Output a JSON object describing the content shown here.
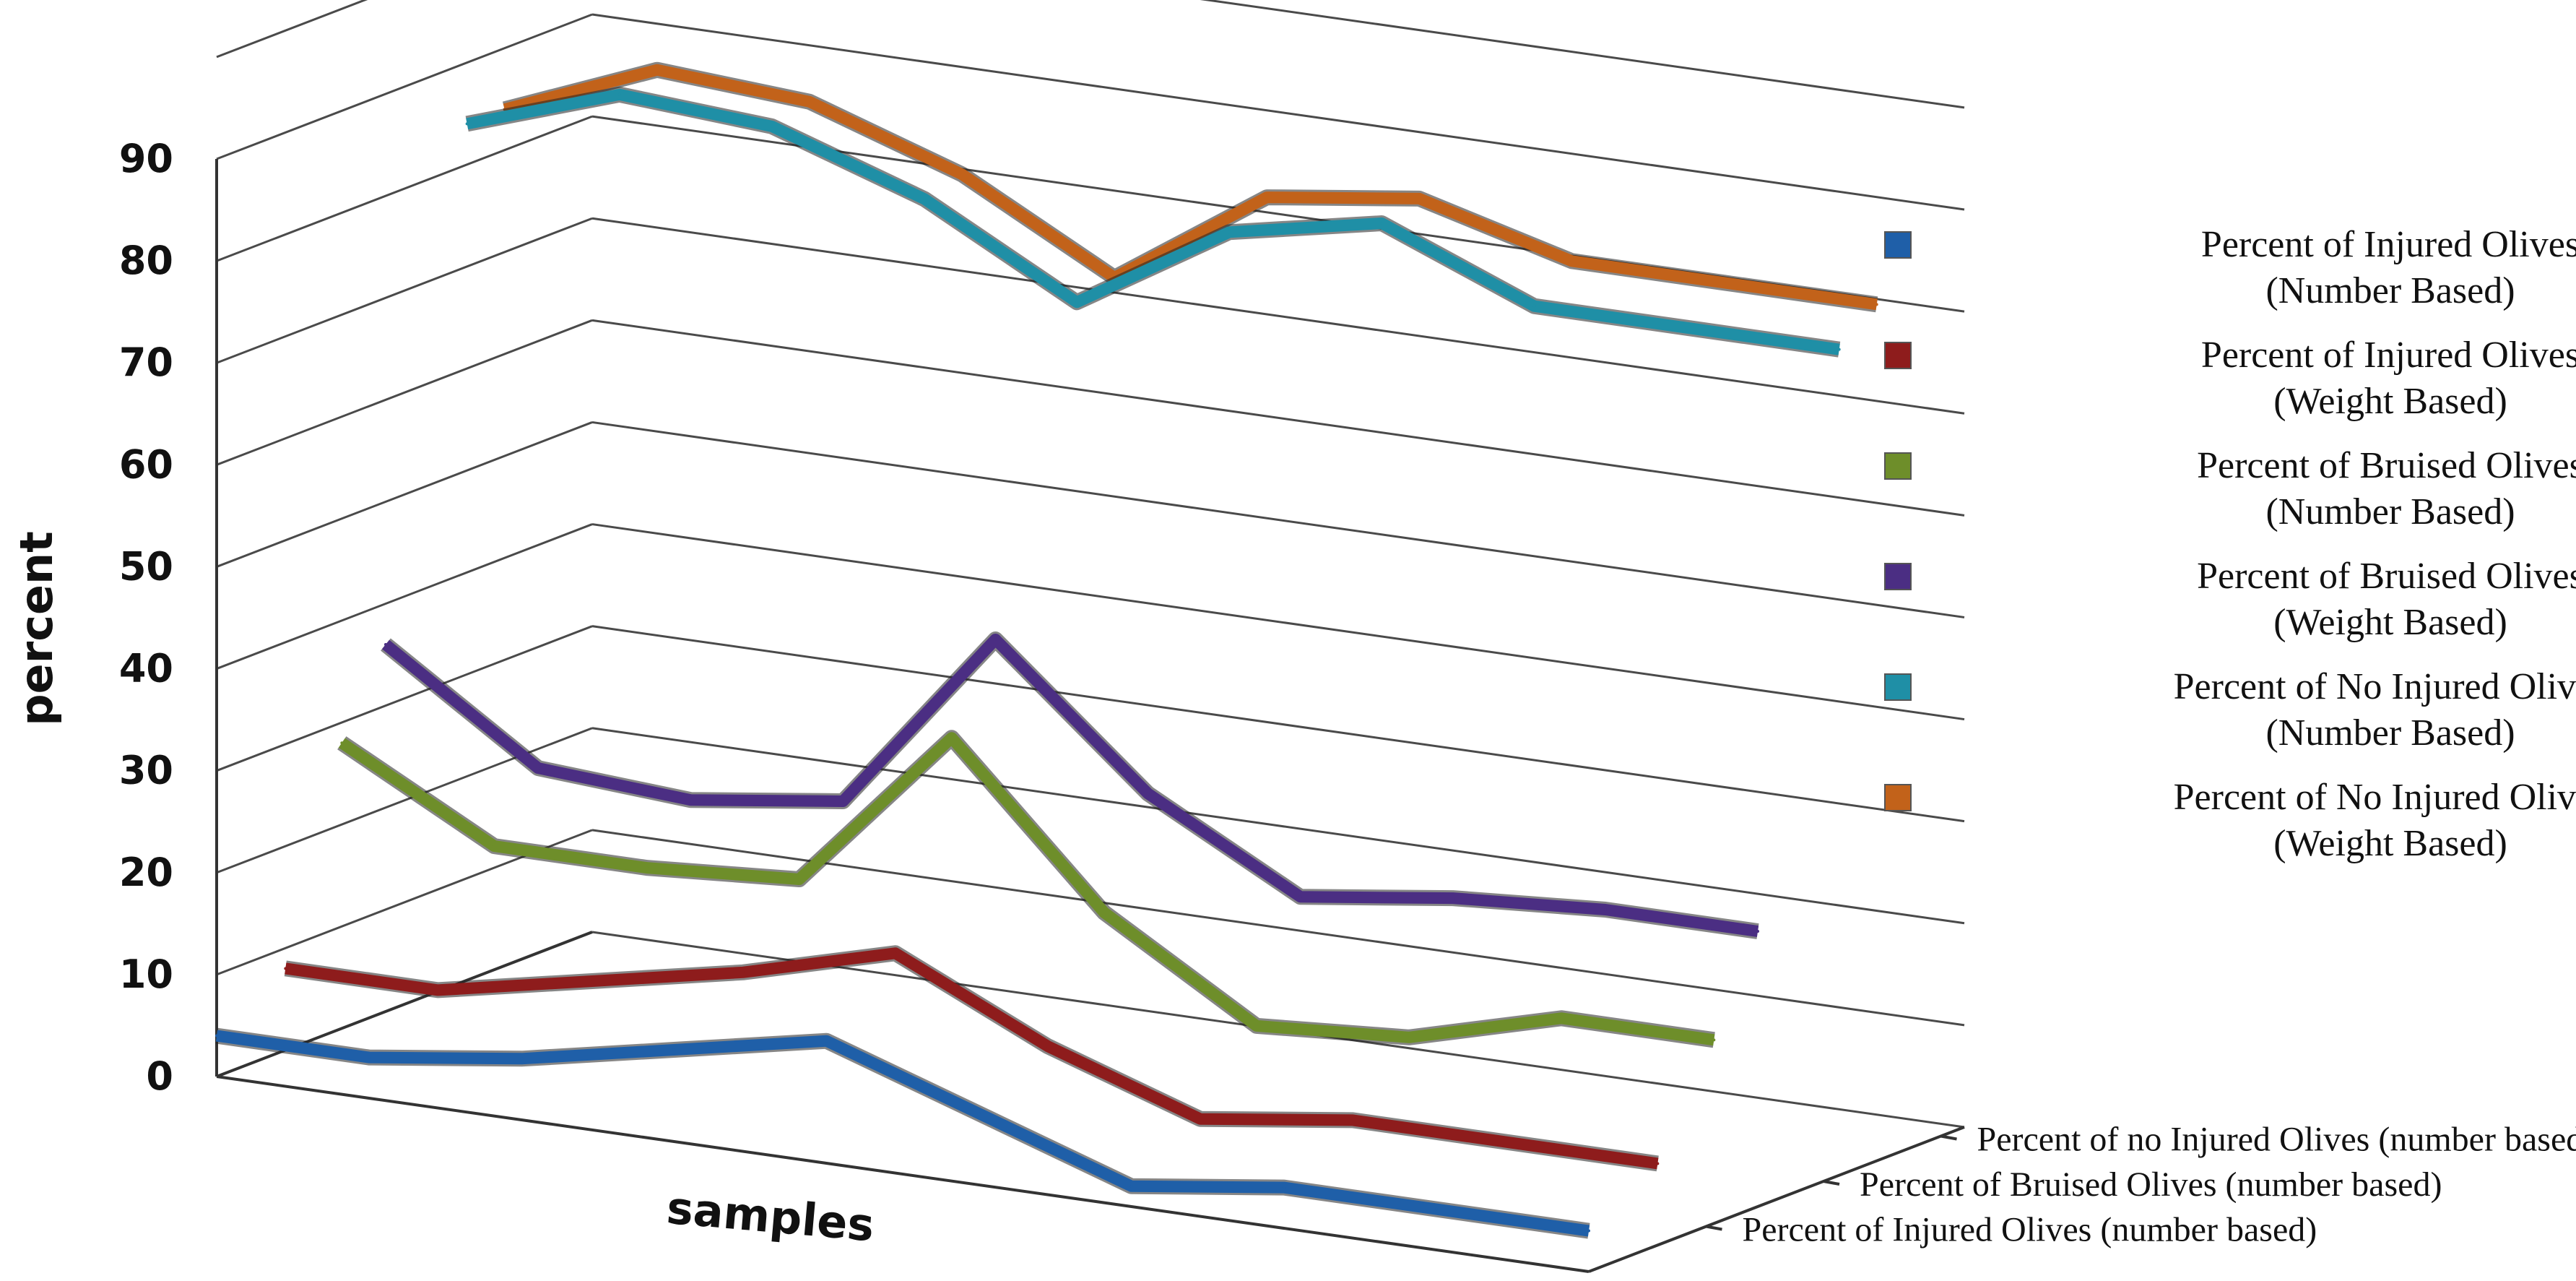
{
  "chart_data": {
    "type": "line",
    "style": "3d",
    "title": "",
    "xlabel": "samples",
    "ylabel": "percent",
    "ylim": [
      0,
      90
    ],
    "yticks": [
      "0",
      "10",
      "20",
      "30",
      "40",
      "50",
      "60",
      "70",
      "80",
      "90"
    ],
    "grid": true,
    "legend_position": "right",
    "x": [
      1,
      2,
      3,
      4,
      5,
      6,
      7,
      8,
      9,
      10
    ],
    "series": [
      {
        "name": "Percent of Injured Olives (Number Based)",
        "line1": "Percent of Injured Olives",
        "line2": "(Number Based)",
        "color": "#1f5fa8",
        "depth": 0,
        "values": [
          4,
          4,
          6,
          9,
          12,
          7,
          2,
          4,
          4,
          4
        ]
      },
      {
        "name": "Percent of Injured Olives (Weight Based)",
        "line1": "Percent of Injured Olives",
        "line2": "(Weight Based)",
        "color": "#8e1c1c",
        "depth": 0.55,
        "values": [
          8,
          8,
          11,
          14,
          18,
          11,
          6,
          8,
          8,
          8
        ]
      },
      {
        "name": "Percent of Bruised Olives (Number Based)",
        "line1": "Percent of Bruised Olives",
        "line2": "(Number Based)",
        "color": "#6e8e2a",
        "depth": 1,
        "values": [
          28,
          20,
          20,
          21,
          37,
          22,
          13,
          14,
          18,
          18
        ]
      },
      {
        "name": "Percent of Bruised Olives (Weight Based)",
        "line1": "Percent of Bruised Olives",
        "line2": "(Weight Based)",
        "color": "#4b2e83",
        "depth": 1.35,
        "values": [
          36,
          26,
          25,
          27,
          45,
          32,
          24,
          26,
          27,
          27
        ]
      },
      {
        "name": "Percent of No Injured Olives (Number Based)",
        "line1": "Percent of No Injured Olives",
        "line2": "(Number Based)",
        "color": "#1f8fa6",
        "depth": 2,
        "values": [
          84,
          89,
          88,
          83,
          75,
          84,
          87,
          81,
          81,
          81
        ]
      },
      {
        "name": "Percent of No Injured Olives (Weight Based)",
        "line1": "Percent of No Injured Olives",
        "line2": "(Weight Based)",
        "color": "#c2621a",
        "depth": 2.3,
        "values": [
          84,
          90,
          89,
          84,
          76,
          86,
          88,
          84,
          84,
          84
        ]
      }
    ],
    "depth_labels": [
      "Percent of no Injured Olives (number based)",
      "Percent of Bruised Olives (number based)",
      "Percent of  Injured Olives (number based)"
    ]
  }
}
